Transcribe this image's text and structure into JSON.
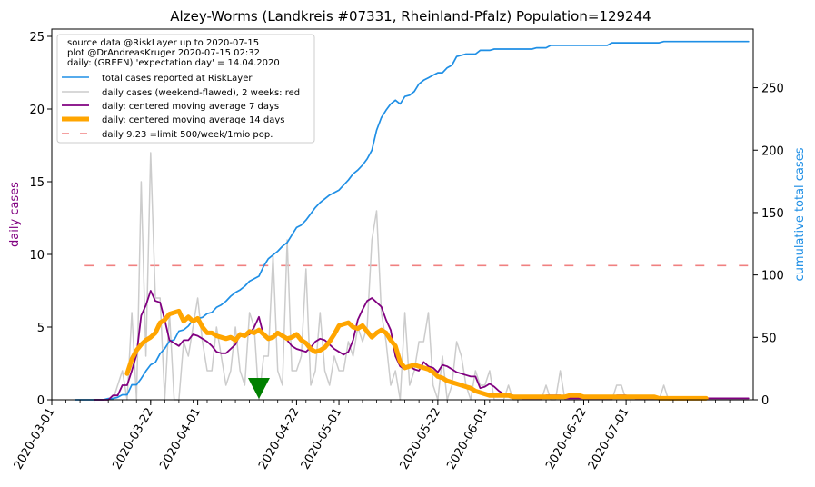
{
  "chart_data": {
    "type": "line",
    "title": "Alzey-Worms (Landkreis #07331, Rheinland-Pfalz) Population=129244",
    "ylabel_left": "daily cases",
    "ylabel_right": "cumulative total cases",
    "ylim_left": [
      0,
      25.5
    ],
    "ylim_right": [
      0,
      297
    ],
    "yticks_left": [
      0,
      5,
      10,
      15,
      20,
      25
    ],
    "yticks_right": [
      0,
      50,
      100,
      150,
      200,
      250
    ],
    "xlim": [
      "2020-03-01",
      "2020-07-28"
    ],
    "xticks": [
      "2020-03-01",
      "2020-03-22",
      "2020-04-01",
      "2020-04-22",
      "2020-05-01",
      "2020-05-22",
      "2020-06-01",
      "2020-06-22",
      "2020-07-01"
    ],
    "legend_placement": "upper-left",
    "info_lines": [
      "source data @RiskLayer up to 2020-07-15",
      "plot @DrAndreasKruger 2020-07-15 02:32",
      "daily: (GREEN) 'expectation day' = 14.04.2020"
    ],
    "legend": [
      {
        "label": "total cases reported at RiskLayer",
        "color": "#1f8fe5",
        "style": "line"
      },
      {
        "label": "daily cases (weekend-flawed), 2 weeks: red",
        "color": "#cccccc",
        "style": "line"
      },
      {
        "label": "daily: centered moving average 7 days",
        "color": "#800080",
        "style": "line"
      },
      {
        "label": "daily: centered moving average 14 days",
        "color": "#ffa500",
        "style": "thick"
      },
      {
        "label": "daily 9.23 =limit 500/week/1mio pop.",
        "color": "#f08080",
        "style": "dashed"
      }
    ],
    "expectation_day": "2020-04-14",
    "limit_line": {
      "value": 9.23,
      "start": "2020-03-08",
      "end": "2020-07-28"
    },
    "series": [
      {
        "name": "total cases reported at RiskLayer",
        "axis": "right",
        "color": "#1f8fe5",
        "start": "2020-03-06",
        "values": [
          0,
          0,
          0,
          0,
          0,
          0,
          0,
          1,
          1,
          2,
          4,
          4,
          12,
          12,
          17,
          23,
          28,
          30,
          37,
          41,
          47,
          48,
          55,
          56,
          59,
          64,
          65,
          66,
          69,
          70,
          74,
          76,
          79,
          83,
          86,
          88,
          91,
          95,
          97,
          99,
          107,
          113,
          116,
          119,
          123,
          126,
          132,
          138,
          140,
          144,
          149,
          154,
          158,
          161,
          164,
          166,
          168,
          172,
          176,
          181,
          184,
          188,
          193,
          200,
          216,
          226,
          232,
          237,
          240,
          237,
          243,
          244,
          247,
          253,
          256,
          258,
          260,
          262,
          262,
          266,
          268,
          275,
          276,
          277,
          277,
          277,
          280,
          280,
          280,
          281,
          281,
          281,
          281,
          281,
          281,
          281,
          281,
          281,
          282,
          282,
          282,
          284,
          284,
          284,
          284,
          284,
          284,
          284,
          284,
          284,
          284,
          284,
          284,
          284,
          286,
          286,
          286,
          286,
          286,
          286,
          286,
          286,
          286,
          286,
          286,
          287,
          287,
          287,
          287,
          287,
          287,
          287,
          287,
          287,
          287,
          287,
          287,
          287,
          287,
          287,
          287,
          287,
          287,
          287
        ]
      },
      {
        "name": "daily cases (weekend-flawed), 2 weeks: red",
        "axis": "left",
        "color": "#cccccc",
        "start": "2020-03-06",
        "values": [
          0,
          0,
          0,
          0,
          0,
          0,
          0,
          0,
          0,
          1,
          2,
          0,
          6,
          0,
          15,
          3,
          17,
          7,
          7,
          0,
          6,
          0,
          0,
          4,
          3,
          5,
          7,
          4,
          2,
          2,
          5,
          3,
          1,
          2,
          5,
          2,
          1,
          6,
          5,
          0,
          3,
          3,
          10,
          2,
          1,
          11,
          2,
          2,
          3,
          9,
          1,
          2,
          6,
          2,
          1,
          3,
          2,
          2,
          4,
          3,
          5,
          4,
          5,
          11,
          13,
          6,
          4,
          1,
          2,
          0,
          6,
          1,
          2,
          4,
          4,
          6,
          1,
          0,
          3,
          0,
          1,
          4,
          3,
          1,
          0,
          2,
          1,
          1,
          2,
          0,
          0,
          0,
          1,
          0,
          0,
          0,
          0,
          0,
          0,
          0,
          1,
          0,
          0,
          2,
          0,
          0,
          0,
          0,
          0,
          0,
          0,
          0,
          0,
          0,
          0,
          1,
          1,
          0,
          0,
          0,
          0,
          0,
          0,
          0,
          0,
          1,
          0,
          0,
          0,
          0,
          0,
          0,
          0,
          0,
          0,
          0,
          0,
          0,
          0,
          0,
          0,
          0,
          0,
          0
        ]
      },
      {
        "name": "daily: centered moving average 7 days",
        "axis": "left",
        "color": "#800080",
        "start": "2020-03-06",
        "values": [
          null,
          null,
          null,
          null,
          0,
          0,
          0,
          0,
          0.3,
          0.3,
          1,
          1,
          2,
          3.1,
          5.8,
          6.5,
          7.5,
          6.8,
          6.7,
          5.5,
          4.1,
          3.9,
          3.7,
          4.1,
          4.1,
          4.5,
          4.4,
          4.2,
          4.0,
          3.7,
          3.3,
          3.2,
          3.2,
          3.5,
          3.8,
          4.5,
          4.4,
          4.5,
          5.0,
          5.7,
          4.4,
          4.3,
          4.2,
          4.5,
          4.3,
          4.1,
          3.7,
          3.5,
          3.4,
          3.3,
          3.6,
          4.0,
          4.2,
          4.1,
          3.8,
          3.5,
          3.3,
          3.1,
          3.3,
          4.1,
          5.5,
          6.2,
          6.8,
          7.0,
          6.7,
          6.4,
          5.5,
          4.8,
          3.0,
          2.3,
          2.1,
          2.3,
          2.1,
          2.0,
          2.6,
          2.3,
          2.2,
          1.9,
          2.4,
          2.3,
          2.1,
          1.9,
          1.8,
          1.7,
          1.6,
          1.6,
          0.8,
          0.9,
          1.1,
          0.9,
          0.6,
          0.4,
          0.4,
          0.3,
          0.2,
          0.1,
          0.1,
          0.1,
          0.1,
          0.1,
          0.3,
          0.3,
          0.3,
          0.3,
          0.1,
          0.1,
          0.1,
          0.1,
          0.1,
          0.1,
          0.1,
          0.1,
          0.1,
          0.1,
          0.1,
          0.3,
          0.3,
          0.3,
          0.2,
          0.1,
          0.1,
          0.1,
          0.1,
          0.1,
          0.1,
          0.1,
          0.1,
          0.1,
          0.1,
          0.1,
          0.1,
          0.1,
          0.1,
          0.1,
          0.1,
          0.1,
          0.1,
          0.1,
          0.1,
          0.1,
          0.1,
          0.1,
          0.1,
          0.1
        ]
      },
      {
        "name": "daily: centered moving average 14 days",
        "axis": "left",
        "color": "#ffa500",
        "start": "2020-03-06",
        "values": [
          null,
          null,
          null,
          null,
          null,
          null,
          null,
          null,
          null,
          null,
          null,
          1.8,
          2.8,
          3.4,
          3.8,
          4.1,
          4.3,
          4.6,
          5.3,
          5.5,
          5.9,
          6.0,
          6.1,
          5.4,
          5.7,
          5.4,
          5.6,
          5.0,
          4.6,
          4.6,
          4.4,
          4.3,
          4.2,
          4.3,
          4.1,
          4.5,
          4.4,
          4.7,
          4.6,
          4.8,
          4.5,
          4.2,
          4.3,
          4.6,
          4.4,
          4.2,
          4.3,
          4.5,
          4.1,
          3.9,
          3.5,
          3.3,
          3.4,
          3.6,
          4.0,
          4.5,
          5.1,
          5.2,
          5.3,
          5.0,
          4.9,
          5.1,
          4.7,
          4.3,
          4.6,
          4.8,
          4.6,
          4.1,
          3.7,
          2.6,
          2.2,
          2.3,
          2.4,
          2.3,
          2.2,
          2.1,
          1.9,
          1.6,
          1.5,
          1.3,
          1.2,
          1.1,
          1.0,
          0.9,
          0.8,
          0.6,
          0.5,
          0.4,
          0.3,
          0.3,
          0.3,
          0.3,
          0.3,
          0.2,
          0.2,
          0.2,
          0.2,
          0.2,
          0.2,
          0.2,
          0.2,
          0.2,
          0.2,
          0.2,
          0.2,
          0.3,
          0.3,
          0.3,
          0.2,
          0.2,
          0.2,
          0.2,
          0.2,
          0.2,
          0.2,
          0.2,
          0.2,
          0.2,
          0.2,
          0.2,
          0.2,
          0.2,
          0.2,
          0.2,
          0.1,
          0.1,
          0.1,
          0.1,
          0.1,
          0.1,
          0.1,
          0.1,
          0.1,
          0.1,
          0.1
        ]
      }
    ]
  }
}
